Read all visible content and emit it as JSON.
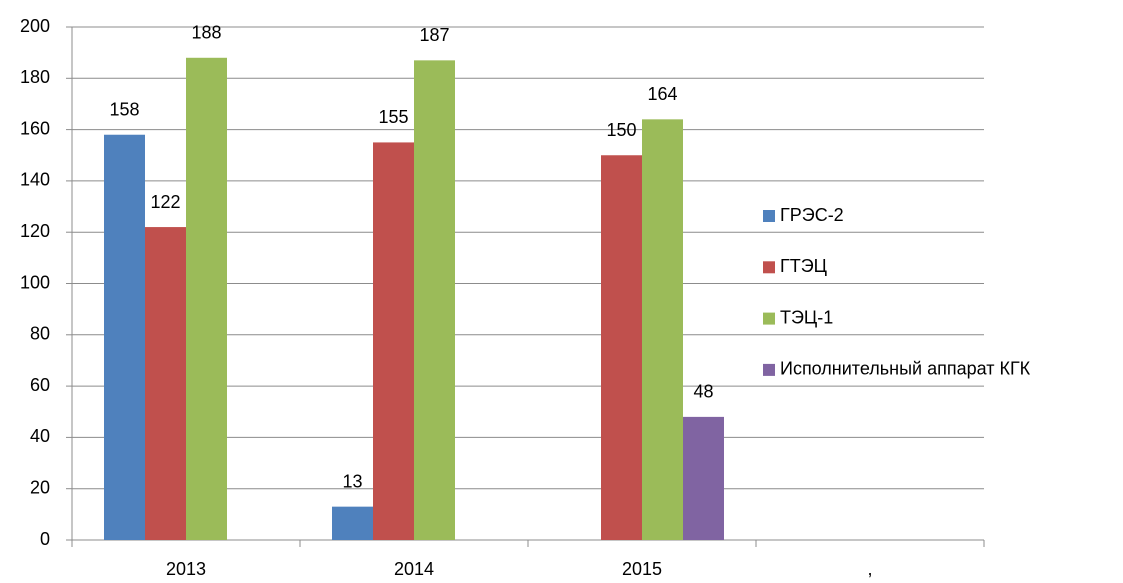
{
  "chart_data": {
    "type": "bar",
    "categories": [
      "2013",
      "2014",
      "2015",
      ","
    ],
    "series": [
      {
        "name": "ГРЭС-2",
        "color": "#4f81bd",
        "values": [
          158,
          13,
          null,
          null
        ]
      },
      {
        "name": "ГТЭЦ",
        "color": "#c0504d",
        "values": [
          122,
          155,
          150,
          null
        ]
      },
      {
        "name": "ТЭЦ-1",
        "color": "#9bbb59",
        "values": [
          188,
          187,
          164,
          null
        ]
      },
      {
        "name": "Исполнительный аппарат КГК",
        "color": "#8064a2",
        "values": [
          null,
          null,
          48,
          null
        ]
      }
    ],
    "ylim": [
      0,
      200
    ],
    "yticks": [
      0,
      20,
      40,
      60,
      80,
      100,
      120,
      140,
      160,
      180,
      200
    ],
    "grid": true,
    "legend": "right"
  }
}
